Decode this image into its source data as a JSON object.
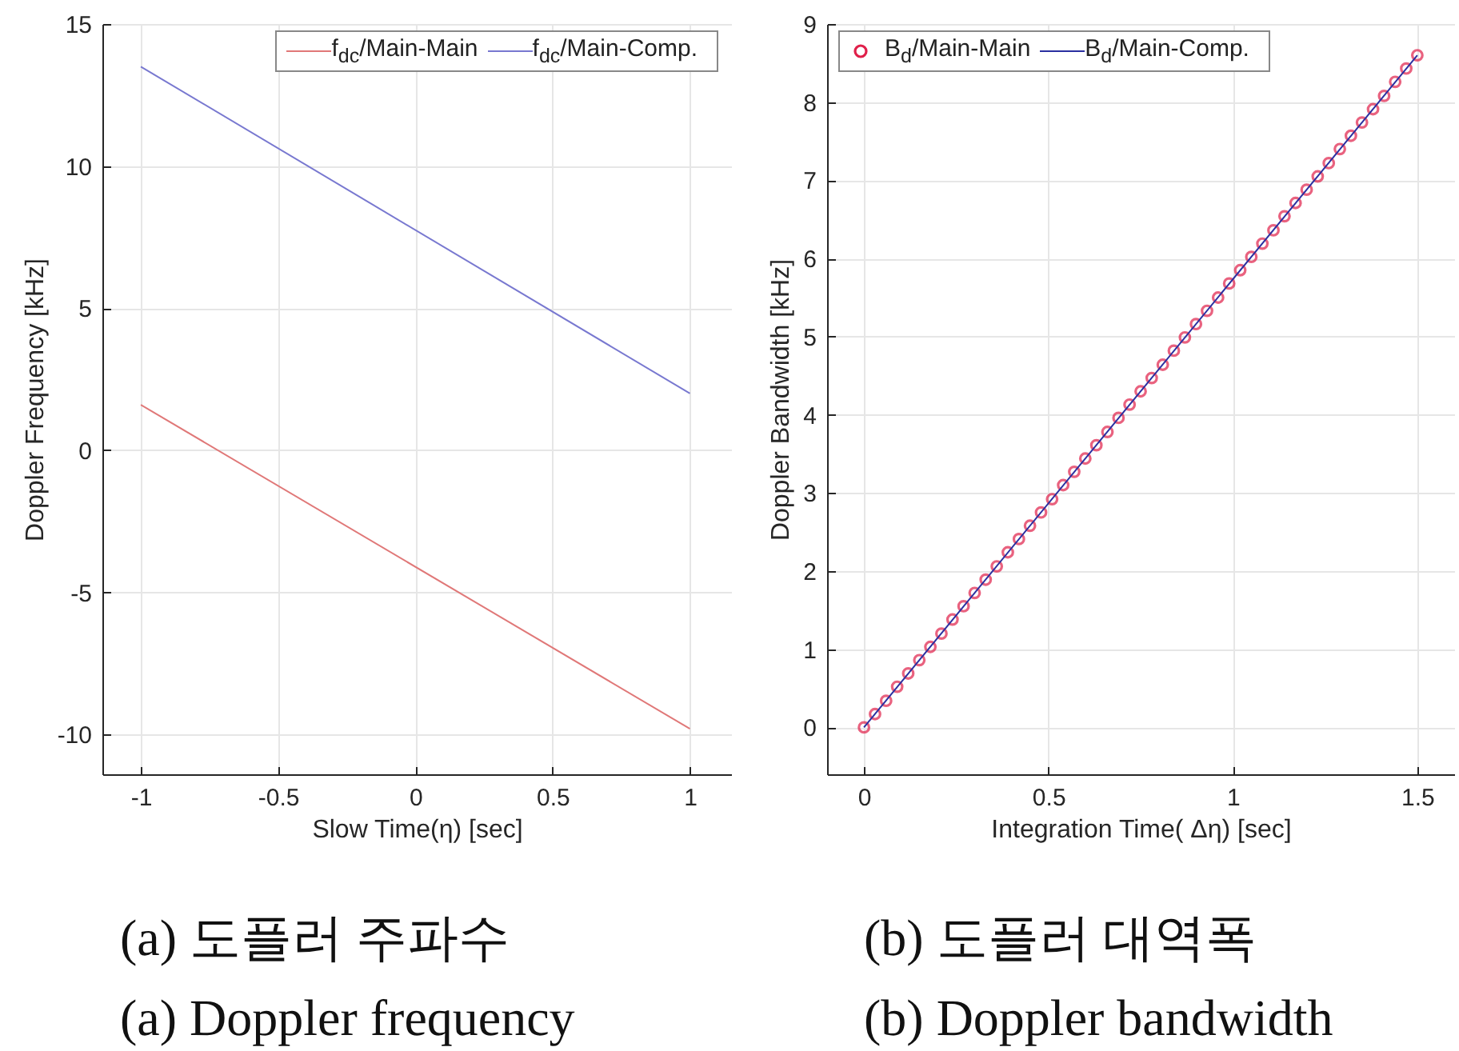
{
  "chart_data": [
    {
      "type": "line",
      "xlabel": "Slow Time(η) [sec]",
      "ylabel": "Doppler Frequency [kHz]",
      "x": [
        -1,
        1
      ],
      "series": [
        {
          "name": "f$_{dc}$/Main-Main",
          "color": "#e07878",
          "values": [
            1.6,
            -9.8
          ]
        },
        {
          "name": "f$_{dc}$/Main-Comp.",
          "color": "#7878d0",
          "values": [
            13.5,
            2.0
          ]
        }
      ],
      "xlim": [
        -1.14,
        1.15
      ],
      "xticks": [
        -1,
        -0.5,
        0,
        0.5,
        1
      ],
      "ylim": [
        -11.4,
        15
      ],
      "yticks": [
        -10,
        -5,
        0,
        5,
        10,
        15
      ],
      "grid": true,
      "legend": "top right",
      "annotations": [
        "(a) 도플러 주파수",
        "(a) Doppler frequency"
      ]
    },
    {
      "type": "line",
      "xlabel": "Integration Time( Δη) [sec]",
      "ylabel": "Doppler Bandwidth [kHz]",
      "series": [
        {
          "name": "B$_{d}$/Main-Main",
          "type": "scatter",
          "marker": "circle",
          "color": "#e0204a",
          "x": [
            0,
            0.03,
            0.06,
            0.09,
            0.12,
            0.15,
            0.18,
            0.21,
            0.24,
            0.27,
            0.3,
            0.33,
            0.36,
            0.39,
            0.42,
            0.45,
            0.48,
            0.51,
            0.54,
            0.57,
            0.6,
            0.63,
            0.66,
            0.69,
            0.72,
            0.75,
            0.78,
            0.81,
            0.84,
            0.87,
            0.9,
            0.93,
            0.96,
            0.99,
            1.02,
            1.05,
            1.08,
            1.11,
            1.14,
            1.17,
            1.2,
            1.23,
            1.26,
            1.29,
            1.32,
            1.35,
            1.38,
            1.41,
            1.44,
            1.47,
            1.5
          ],
          "values": [
            0,
            0.17,
            0.34,
            0.52,
            0.69,
            0.86,
            1.03,
            1.2,
            1.38,
            1.55,
            1.72,
            1.89,
            2.06,
            2.24,
            2.41,
            2.58,
            2.75,
            2.92,
            3.1,
            3.27,
            3.44,
            3.61,
            3.78,
            3.96,
            4.13,
            4.3,
            4.47,
            4.64,
            4.82,
            4.99,
            5.16,
            5.33,
            5.5,
            5.68,
            5.85,
            6.02,
            6.19,
            6.36,
            6.54,
            6.71,
            6.88,
            7.05,
            7.22,
            7.4,
            7.57,
            7.74,
            7.91,
            8.08,
            8.26,
            8.43,
            8.6
          ]
        },
        {
          "name": "B$_{d}$/Main-Comp.",
          "color": "#2a2fa0",
          "x": [
            0,
            1.5
          ],
          "values": [
            0,
            8.6
          ]
        }
      ],
      "xlim": [
        -0.1,
        1.6
      ],
      "xticks": [
        0,
        0.5,
        1,
        1.5
      ],
      "ylim": [
        -0.6,
        9
      ],
      "yticks": [
        0,
        1,
        2,
        3,
        4,
        5,
        6,
        7,
        8,
        9
      ],
      "grid": true,
      "legend": "top left",
      "annotations": [
        "(b) 도플러 대역폭",
        "(b) Doppler bandwidth"
      ]
    }
  ]
}
